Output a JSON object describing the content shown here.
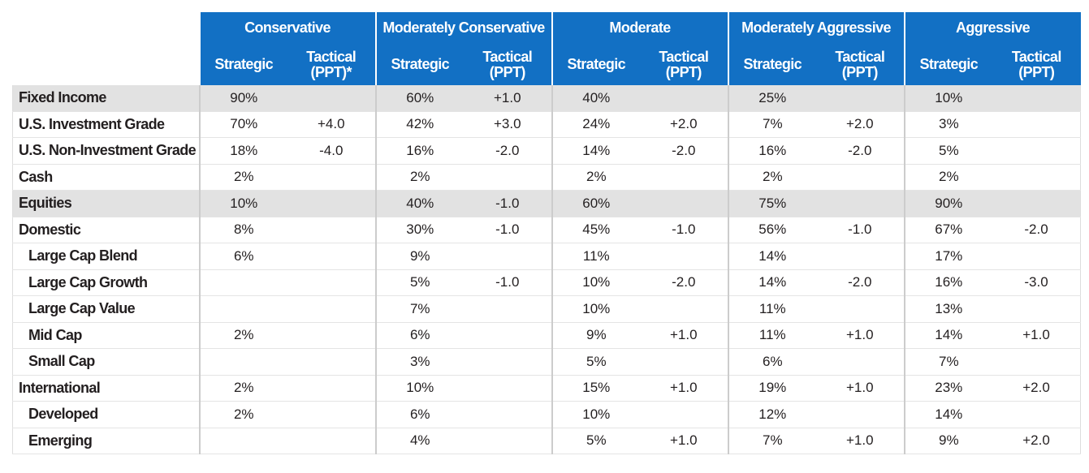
{
  "groups": [
    "Conservative",
    "Moderately Conservative",
    "Moderate",
    "Moderately Aggressive",
    "Aggressive"
  ],
  "subheaders": [
    [
      "Strategic",
      "Tactical (PPT)*"
    ],
    [
      "Strategic",
      "Tactical (PPT)"
    ],
    [
      "Strategic",
      "Tactical (PPT)"
    ],
    [
      "Strategic",
      "Tactical (PPT)"
    ],
    [
      "Strategic",
      "Tactical (PPT)"
    ]
  ],
  "sections": [
    {
      "label": "Fixed Income",
      "values": [
        "90%",
        null,
        "60%",
        "+1.0",
        "40%",
        null,
        "25%",
        null,
        "10%",
        null
      ],
      "rows": [
        {
          "label": "U.S. Investment Grade",
          "values": [
            "70%",
            "+4.0",
            "42%",
            "+3.0",
            "24%",
            "+2.0",
            "7%",
            "+2.0",
            "3%",
            null
          ]
        },
        {
          "label": "U.S. Non-Investment Grade",
          "values": [
            "18%",
            "-4.0",
            "16%",
            "-2.0",
            "14%",
            "-2.0",
            "16%",
            "-2.0",
            "5%",
            null
          ]
        },
        {
          "label": "Cash",
          "values": [
            "2%",
            null,
            "2%",
            null,
            "2%",
            null,
            "2%",
            null,
            "2%",
            null
          ]
        }
      ]
    },
    {
      "label": "Equities",
      "values": [
        "10%",
        null,
        "40%",
        "-1.0",
        "60%",
        null,
        "75%",
        null,
        "90%",
        null
      ],
      "rows": [
        {
          "label": "Domestic",
          "values": [
            "8%",
            null,
            "30%",
            "-1.0",
            "45%",
            "-1.0",
            "56%",
            "-1.0",
            "67%",
            "-2.0"
          ],
          "children": [
            {
              "label": "Large Cap Blend",
              "values": [
                "6%",
                null,
                "9%",
                null,
                "11%",
                null,
                "14%",
                null,
                "17%",
                null
              ]
            },
            {
              "label": "Large Cap Growth",
              "values": [
                null,
                null,
                "5%",
                "-1.0",
                "10%",
                "-2.0",
                "14%",
                "-2.0",
                "16%",
                "-3.0"
              ]
            },
            {
              "label": "Large Cap Value",
              "values": [
                null,
                null,
                "7%",
                null,
                "10%",
                null,
                "11%",
                null,
                "13%",
                null
              ]
            },
            {
              "label": "Mid Cap",
              "values": [
                "2%",
                null,
                "6%",
                null,
                "9%",
                "+1.0",
                "11%",
                "+1.0",
                "14%",
                "+1.0"
              ]
            },
            {
              "label": "Small Cap",
              "values": [
                null,
                null,
                "3%",
                null,
                "5%",
                null,
                "6%",
                null,
                "7%",
                null
              ]
            }
          ]
        },
        {
          "label": "International",
          "values": [
            "2%",
            null,
            "10%",
            null,
            "15%",
            "+1.0",
            "19%",
            "+1.0",
            "23%",
            "+2.0"
          ],
          "children": [
            {
              "label": "Developed",
              "values": [
                "2%",
                null,
                "6%",
                null,
                "10%",
                null,
                "12%",
                null,
                "14%",
                null
              ]
            },
            {
              "label": "Emerging",
              "values": [
                null,
                null,
                "4%",
                null,
                "5%",
                "+1.0",
                "7%",
                "+1.0",
                "9%",
                "+2.0"
              ]
            }
          ]
        }
      ]
    }
  ]
}
